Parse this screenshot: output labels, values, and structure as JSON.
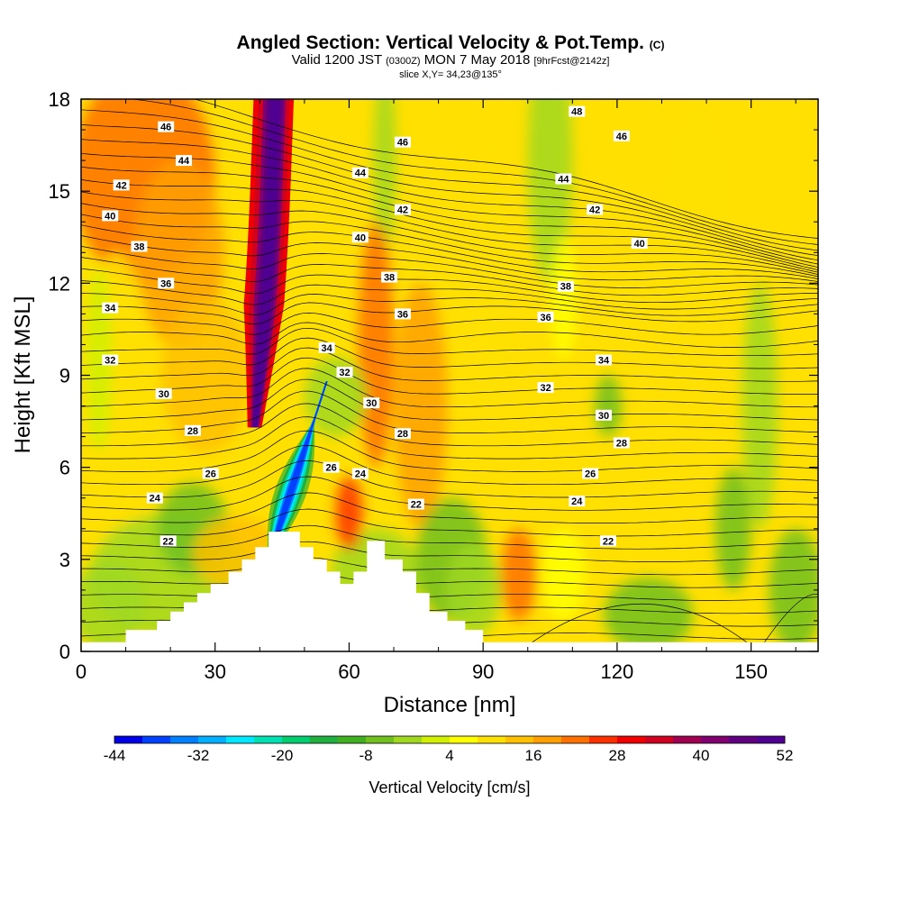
{
  "title": {
    "main": "Angled Section: Vertical Velocity & Pot.Temp.",
    "unit": "(C)",
    "valid_prefix": "Valid 1200 JST",
    "valid_z": "(0300Z)",
    "valid_date": "MON 7 May 2018",
    "forecast": "[9hrFcst@2142z]",
    "slice": "slice X,Y= 34,23@135°"
  },
  "chart_data": {
    "type": "heatmap",
    "xlabel": "Distance [nm]",
    "ylabel": "Height [Kft MSL]",
    "xlim": [
      0,
      165
    ],
    "ylim": [
      0,
      18
    ],
    "x_ticks": [
      0,
      30,
      60,
      90,
      120,
      150
    ],
    "y_ticks": [
      0,
      3,
      6,
      9,
      12,
      15,
      18
    ],
    "colorbar": {
      "title": "Vertical Velocity [cm/s]",
      "min": -44,
      "max": 52,
      "step": 4,
      "tick_labels": [
        -44,
        -32,
        -20,
        -8,
        4,
        16,
        28,
        40,
        52
      ],
      "colors": [
        "#0000e6",
        "#0040ff",
        "#0080ff",
        "#00b0ff",
        "#00e8ff",
        "#00e0b0",
        "#00cc70",
        "#20b040",
        "#40b020",
        "#70c020",
        "#a0d820",
        "#d0f000",
        "#ffff00",
        "#ffe000",
        "#ffc000",
        "#ffa000",
        "#ff7000",
        "#ff3000",
        "#f00000",
        "#d00020",
        "#a00050",
        "#800070",
        "#600080",
        "#500090"
      ]
    },
    "terrain": {
      "x": [
        0,
        10,
        10,
        17,
        17,
        20,
        20,
        23,
        23,
        26,
        26,
        29,
        29,
        33,
        33,
        36,
        36,
        39,
        39,
        42,
        42,
        49,
        49,
        52,
        52,
        55,
        55,
        58,
        58,
        61,
        61,
        64,
        64,
        68,
        68,
        72,
        72,
        75,
        75,
        78,
        78,
        82,
        82,
        86,
        86,
        90,
        90
      ],
      "z": [
        0.3,
        0.3,
        0.7,
        0.7,
        1.0,
        1.0,
        1.3,
        1.3,
        1.6,
        1.6,
        1.9,
        1.9,
        2.2,
        2.2,
        2.6,
        2.6,
        3.0,
        3.0,
        3.4,
        3.4,
        3.9,
        3.9,
        3.4,
        3.4,
        3.0,
        3.0,
        2.6,
        2.6,
        2.2,
        2.2,
        2.6,
        2.6,
        3.6,
        3.6,
        3.0,
        3.0,
        2.6,
        2.6,
        1.9,
        1.9,
        1.3,
        1.3,
        1.0,
        1.0,
        0.7,
        0.7,
        0.3
      ]
    },
    "contour_levels": [
      22,
      24,
      26,
      28,
      30,
      32,
      34,
      36,
      38,
      40,
      42,
      44,
      46,
      48
    ],
    "contour_labels": [
      {
        "text": "46",
        "x": 19,
        "y": 17.1
      },
      {
        "text": "44",
        "x": 23,
        "y": 16.0
      },
      {
        "text": "42",
        "x": 9,
        "y": 15.2
      },
      {
        "text": "40",
        "x": 6.5,
        "y": 14.2
      },
      {
        "text": "38",
        "x": 13,
        "y": 13.2
      },
      {
        "text": "36",
        "x": 19,
        "y": 12.0
      },
      {
        "text": "34",
        "x": 6.5,
        "y": 11.2
      },
      {
        "text": "32",
        "x": 6.5,
        "y": 9.5
      },
      {
        "text": "30",
        "x": 18.5,
        "y": 8.4
      },
      {
        "text": "28",
        "x": 25,
        "y": 7.2
      },
      {
        "text": "26",
        "x": 29,
        "y": 5.8
      },
      {
        "text": "24",
        "x": 16.5,
        "y": 5.0
      },
      {
        "text": "22",
        "x": 19.5,
        "y": 3.6
      },
      {
        "text": "46",
        "x": 72,
        "y": 16.6
      },
      {
        "text": "44",
        "x": 62.5,
        "y": 15.6
      },
      {
        "text": "42",
        "x": 72,
        "y": 14.4
      },
      {
        "text": "40",
        "x": 62.5,
        "y": 13.5
      },
      {
        "text": "38",
        "x": 69,
        "y": 12.2
      },
      {
        "text": "36",
        "x": 72,
        "y": 11.0
      },
      {
        "text": "34",
        "x": 55,
        "y": 9.9
      },
      {
        "text": "32",
        "x": 59,
        "y": 9.1
      },
      {
        "text": "30",
        "x": 65,
        "y": 8.1
      },
      {
        "text": "28",
        "x": 72,
        "y": 7.1
      },
      {
        "text": "26",
        "x": 56,
        "y": 6.0
      },
      {
        "text": "24",
        "x": 62.5,
        "y": 5.8
      },
      {
        "text": "22",
        "x": 75,
        "y": 4.8
      },
      {
        "text": "48",
        "x": 111,
        "y": 17.6
      },
      {
        "text": "46",
        "x": 121,
        "y": 16.8
      },
      {
        "text": "44",
        "x": 108,
        "y": 15.4
      },
      {
        "text": "42",
        "x": 115,
        "y": 14.4
      },
      {
        "text": "40",
        "x": 125,
        "y": 13.3
      },
      {
        "text": "38",
        "x": 108.5,
        "y": 11.9
      },
      {
        "text": "36",
        "x": 104,
        "y": 10.9
      },
      {
        "text": "34",
        "x": 117,
        "y": 9.5
      },
      {
        "text": "32",
        "x": 104,
        "y": 8.6
      },
      {
        "text": "30",
        "x": 117,
        "y": 7.7
      },
      {
        "text": "28",
        "x": 121,
        "y": 6.8
      },
      {
        "text": "26",
        "x": 114,
        "y": 5.8
      },
      {
        "text": "24",
        "x": 111,
        "y": 4.9
      },
      {
        "text": "22",
        "x": 118,
        "y": 3.6
      }
    ]
  }
}
